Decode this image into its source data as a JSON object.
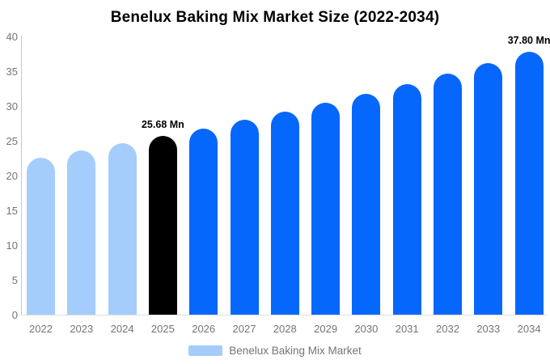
{
  "title": "Benelux Baking Mix Market Size (2022-2034)",
  "legend": {
    "label": "Benelux Baking Mix Market"
  },
  "colors": {
    "historical": "#A4CDFB",
    "base_year": "#000000",
    "forecast": "#0567FB",
    "axis_text": "#757575",
    "annotation_text": "#000000",
    "axis_line": "#C9C9C9",
    "baseline": "#DCDCDC"
  },
  "chart_data": {
    "type": "bar",
    "title": "Benelux Baking Mix Market Size (2022-2034)",
    "unit": "Mn",
    "categories": [
      "2022",
      "2023",
      "2024",
      "2025",
      "2026",
      "2027",
      "2028",
      "2029",
      "2030",
      "2031",
      "2032",
      "2033",
      "2034"
    ],
    "series": [
      {
        "name": "Benelux Baking Mix Market",
        "values": [
          22.6,
          23.6,
          24.6,
          25.68,
          26.8,
          28.0,
          29.2,
          30.5,
          31.8,
          33.2,
          34.7,
          36.2,
          37.8
        ]
      }
    ],
    "point_color_keys": [
      "historical",
      "historical",
      "historical",
      "base_year",
      "forecast",
      "forecast",
      "forecast",
      "forecast",
      "forecast",
      "forecast",
      "forecast",
      "forecast",
      "forecast"
    ],
    "annotations": [
      {
        "category": "2025",
        "text": "25.68 Mn"
      },
      {
        "category": "2034",
        "text": "37.80 Mn"
      }
    ],
    "xlabel": "",
    "ylabel": "",
    "ylim": [
      0,
      40
    ],
    "yticks": [
      0,
      5,
      10,
      15,
      20,
      25,
      30,
      35,
      40
    ],
    "grid": false,
    "legend_position": "bottom"
  }
}
